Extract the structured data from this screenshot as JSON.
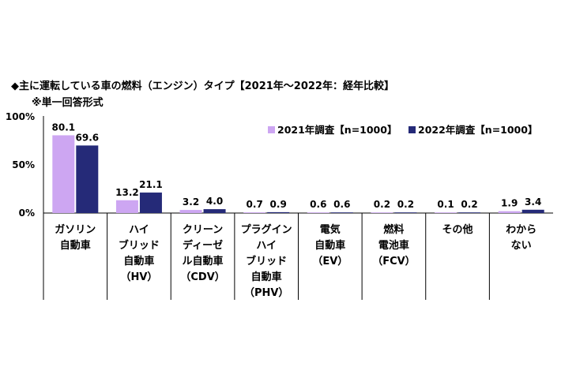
{
  "chart_data": {
    "type": "bar",
    "title": "◆主に運転している車の燃料（エンジン）タイプ【2021年～2022年：経年比較】",
    "subtitle": "※単一回答形式",
    "yticks": [
      "100%",
      "50%",
      "0%"
    ],
    "ylim": [
      0,
      100
    ],
    "grid": false,
    "legend_position": "top-right",
    "categories": [
      "ガソリン\n自動車",
      "ハイ\nブリッド\n自動車\n（HV）",
      "クリーン\nディーゼ\nル自動車\n（CDV）",
      "プラグイン\nハイ\nブリッド\n自動車\n（PHV）",
      "電気\n自動車\n（EV）",
      "燃料\n電池車\n（FCV）",
      "その他",
      "わから\nない"
    ],
    "series": [
      {
        "name": "2021年調査【n=1000】",
        "color": "#cda6f2",
        "values": [
          80.1,
          13.2,
          3.2,
          0.7,
          0.6,
          0.2,
          0.1,
          1.9
        ],
        "labels": [
          "80.1",
          "13.2",
          "3.2",
          "0.7",
          "0.6",
          "0.2",
          "0.1",
          "1.9"
        ]
      },
      {
        "name": "2022年調査【n=1000】",
        "color": "#252a78",
        "values": [
          69.6,
          21.1,
          4.0,
          0.9,
          0.6,
          0.2,
          0.2,
          3.4
        ],
        "labels": [
          "69.6",
          "21.1",
          "4.0",
          "0.9",
          "0.6",
          "0.2",
          "0.2",
          "3.4"
        ]
      }
    ]
  }
}
